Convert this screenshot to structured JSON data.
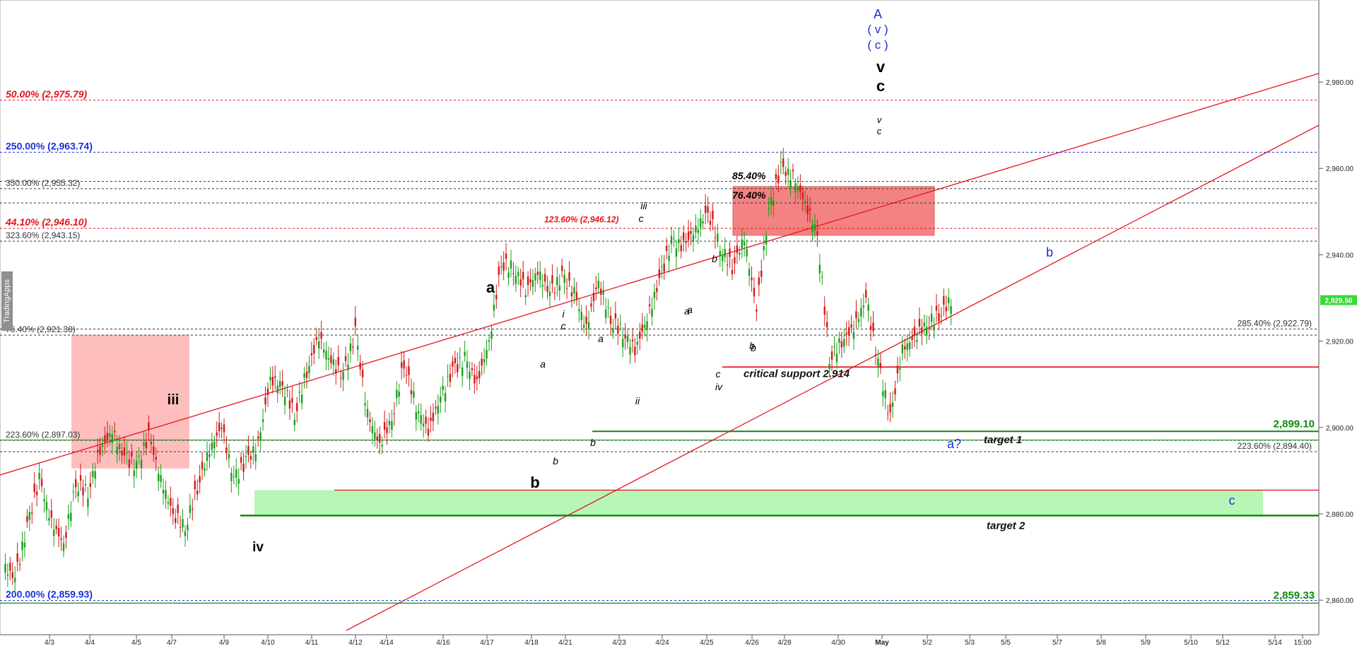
{
  "watermark": "TradingApps",
  "chart_data": {
    "type": "candlestick",
    "ylim": [
      2852,
      2999
    ],
    "y_ticks": [
      2860,
      2880,
      2900,
      2920,
      2940,
      2960,
      2980
    ],
    "y_tick_labels": [
      "2,860.00",
      "2,880.00",
      "2,900.00",
      "2,920.00",
      "2,940.00",
      "2,960.00",
      "2,980.00"
    ],
    "x_ticks": [
      "4/3",
      "4/4",
      "4/5",
      "4/7",
      "4/9",
      "4/10",
      "4/11",
      "4/12",
      "4/14",
      "4/16",
      "4/17",
      "4/18",
      "4/21",
      "4/23",
      "4/24",
      "4/25",
      "4/26",
      "4/28",
      "4/30",
      "May",
      "5/2",
      "5/3",
      "5/5",
      "5/7",
      "5/8",
      "5/9",
      "5/10",
      "5/12",
      "5/14",
      "15:00"
    ],
    "last_price": "2,929.50",
    "price_path": [
      [
        0,
        2868
      ],
      [
        2,
        2865
      ],
      [
        3,
        2877
      ],
      [
        4,
        2888
      ],
      [
        5,
        2878
      ],
      [
        6,
        2873
      ],
      [
        7,
        2887
      ],
      [
        8,
        2885
      ],
      [
        9,
        2895
      ],
      [
        10,
        2899
      ],
      [
        11,
        2893
      ],
      [
        12,
        2891
      ],
      [
        13,
        2898
      ],
      [
        14,
        2888
      ],
      [
        15,
        2880
      ],
      [
        16,
        2877
      ],
      [
        17,
        2886
      ],
      [
        18,
        2895
      ],
      [
        19,
        2900
      ],
      [
        20,
        2888
      ],
      [
        21,
        2892
      ],
      [
        22,
        2896
      ],
      [
        23,
        2911
      ],
      [
        24,
        2910
      ],
      [
        25,
        2903
      ],
      [
        26,
        2913
      ],
      [
        27,
        2921
      ],
      [
        28,
        2915
      ],
      [
        29,
        2912
      ],
      [
        30,
        2922
      ],
      [
        31,
        2903
      ],
      [
        32,
        2896
      ],
      [
        33,
        2902
      ],
      [
        34,
        2915
      ],
      [
        35,
        2905
      ],
      [
        36,
        2899
      ],
      [
        37,
        2907
      ],
      [
        38,
        2913
      ],
      [
        39,
        2916
      ],
      [
        40,
        2910
      ],
      [
        41,
        2920
      ],
      [
        42,
        2938
      ],
      [
        43,
        2937
      ],
      [
        44,
        2932
      ],
      [
        45,
        2936
      ],
      [
        46,
        2931
      ],
      [
        47,
        2935
      ],
      [
        48,
        2931
      ],
      [
        49,
        2923
      ],
      [
        50,
        2934
      ],
      [
        51,
        2925
      ],
      [
        52,
        2922
      ],
      [
        53,
        2918
      ],
      [
        54,
        2925
      ],
      [
        55,
        2934
      ],
      [
        56,
        2943
      ],
      [
        57,
        2942
      ],
      [
        58,
        2946
      ],
      [
        59,
        2950
      ],
      [
        60,
        2942
      ],
      [
        61,
        2937
      ],
      [
        62,
        2944
      ],
      [
        63,
        2927
      ],
      [
        64,
        2950
      ],
      [
        65,
        2960
      ],
      [
        66,
        2958
      ],
      [
        67,
        2952
      ],
      [
        68,
        2945
      ],
      [
        69,
        2916
      ],
      [
        70,
        2920
      ],
      [
        71,
        2923
      ],
      [
        72,
        2930
      ],
      [
        73,
        2915
      ],
      [
        74,
        2902
      ],
      [
        75,
        2918
      ],
      [
        76,
        2921
      ],
      [
        77,
        2924
      ],
      [
        78,
        2926
      ],
      [
        79,
        2929.5
      ]
    ],
    "fib_lines": [
      {
        "label": "50.00% (2,975.79)",
        "value": 2975.79,
        "color": "#e8141b",
        "dash": true,
        "side": "left",
        "bold": true,
        "italic": true
      },
      {
        "label": "250.00% (2,963.74)",
        "value": 2963.74,
        "color": "#1f2fd6",
        "dash": true,
        "side": "left",
        "bold": true,
        "italic": false
      },
      {
        "label": "350.00% (2,955.32)",
        "value": 2955.32,
        "color": "#333333",
        "dash": true,
        "side": "left",
        "bold": false,
        "italic": false
      },
      {
        "label": "44.10% (2,946.10)",
        "value": 2946.1,
        "color": "#e8141b",
        "dash": true,
        "side": "left",
        "bold": true,
        "italic": true
      },
      {
        "label": "323.60% (2,943.15)",
        "value": 2943.15,
        "color": "#333333",
        "dash": true,
        "side": "left",
        "bold": false,
        "italic": false
      },
      {
        "label": "76.40% (2,921.38)",
        "value": 2921.38,
        "color": "#333333",
        "dash": true,
        "side": "left",
        "bold": false,
        "italic": false
      },
      {
        "label": "223.60% (2,897.03)",
        "value": 2897.03,
        "color": "#333333",
        "dash": true,
        "side": "left",
        "bold": false,
        "italic": false
      },
      {
        "label": "200.00% (2,859.93)",
        "value": 2859.93,
        "color": "#1f2fd6",
        "dash": true,
        "side": "left",
        "bold": true,
        "italic": false
      },
      {
        "label": "285.40% (2,922.79)",
        "value": 2922.79,
        "color": "#333333",
        "dash": true,
        "side": "right",
        "bold": false,
        "italic": false
      },
      {
        "label": "223.60% (2,894.40)",
        "value": 2894.4,
        "color": "#333333",
        "dash": true,
        "side": "right",
        "bold": false,
        "italic": false
      }
    ],
    "zone_labels": [
      {
        "label": "123.60% (2,946.12)",
        "value": 2946.12,
        "color": "#e8141b"
      },
      {
        "label": "85.40%",
        "value": 2956.8,
        "color": "#000000"
      },
      {
        "label": "76.40%",
        "value": 2952.2,
        "color": "#000000"
      }
    ],
    "support_levels": [
      {
        "label": "critical support 2.914",
        "value": 2914
      },
      {
        "label": "target 1",
        "value": 2899.1
      },
      {
        "label": "target 2",
        "value": 2879.6
      }
    ],
    "green_levels": [
      {
        "label": "2,899.10",
        "value": 2899.1
      },
      {
        "label": "2,859.33",
        "value": 2859.33
      }
    ],
    "wave_labels": [
      {
        "text": "A",
        "color": "#1f2fd6",
        "size": 18,
        "bold": false,
        "italic": false
      },
      {
        "text": "( v )",
        "color": "#1f2fd6",
        "size": 17,
        "bold": false,
        "italic": false
      },
      {
        "text": "( c )",
        "color": "#1f2fd6",
        "size": 17,
        "bold": false,
        "italic": false
      },
      {
        "text": "v",
        "color": "#000000",
        "size": 22,
        "bold": true,
        "italic": false
      },
      {
        "text": "c",
        "color": "#000000",
        "size": 22,
        "bold": true,
        "italic": false
      },
      {
        "text": "v",
        "color": "#000000",
        "size": 13,
        "bold": false,
        "italic": true
      },
      {
        "text": "c",
        "color": "#000000",
        "size": 13,
        "bold": false,
        "italic": true
      },
      {
        "text": "iii",
        "color": "#000000",
        "size": 14,
        "bold": false,
        "italic": true
      },
      {
        "text": "c",
        "color": "#000000",
        "size": 14,
        "bold": false,
        "italic": true
      },
      {
        "text": "a",
        "color": "#000000",
        "size": 22,
        "bold": true,
        "italic": false
      },
      {
        "text": "iii",
        "color": "#000000",
        "size": 20,
        "bold": true,
        "italic": false
      },
      {
        "text": "b",
        "color": "#000000",
        "size": 22,
        "bold": true,
        "italic": false
      },
      {
        "text": "iv",
        "color": "#000000",
        "size": 19,
        "bold": true,
        "italic": false
      },
      {
        "text": "i",
        "color": "#000000",
        "size": 14,
        "bold": false,
        "italic": true
      },
      {
        "text": "c",
        "color": "#000000",
        "size": 14,
        "bold": false,
        "italic": true
      },
      {
        "text": "a",
        "color": "#000000",
        "size": 14,
        "bold": false,
        "italic": true
      },
      {
        "text": "a",
        "color": "#000000",
        "size": 14,
        "bold": false,
        "italic": true
      },
      {
        "text": "b",
        "color": "#000000",
        "size": 14,
        "bold": false,
        "italic": true
      },
      {
        "text": "b",
        "color": "#000000",
        "size": 14,
        "bold": false,
        "italic": true
      },
      {
        "text": "ii",
        "color": "#000000",
        "size": 14,
        "bold": false,
        "italic": true
      },
      {
        "text": "b",
        "color": "#000000",
        "size": 14,
        "bold": false,
        "italic": true
      },
      {
        "text": "a",
        "color": "#000000",
        "size": 14,
        "bold": false,
        "italic": true
      },
      {
        "text": "a",
        "color": "#000000",
        "size": 14,
        "bold": false,
        "italic": true
      },
      {
        "text": "b",
        "color": "#000000",
        "size": 14,
        "bold": false,
        "italic": true
      },
      {
        "text": "c",
        "color": "#000000",
        "size": 14,
        "bold": false,
        "italic": true
      },
      {
        "text": "iv",
        "color": "#000000",
        "size": 14,
        "bold": false,
        "italic": true
      },
      {
        "text": "b",
        "color": "#000000",
        "size": 14,
        "bold": false,
        "italic": true
      },
      {
        "text": "b",
        "color": "#1f2fd6",
        "size": 18,
        "bold": false,
        "italic": false
      },
      {
        "text": "a?",
        "color": "#1f2fd6",
        "size": 18,
        "bold": false,
        "italic": false
      },
      {
        "text": "c",
        "color": "#1f2fd6",
        "size": 18,
        "bold": false,
        "italic": false
      }
    ]
  }
}
